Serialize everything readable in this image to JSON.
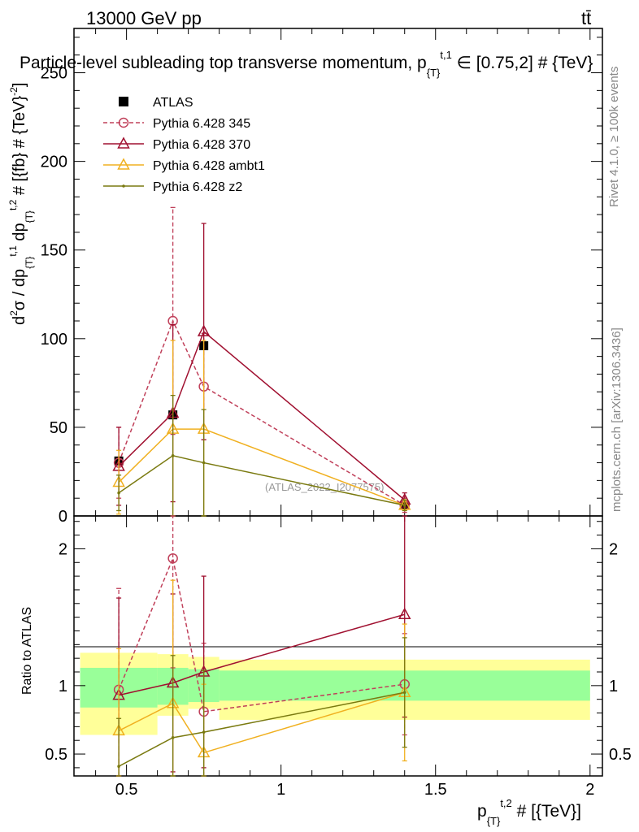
{
  "header": {
    "left": "13000 GeV pp",
    "right": "tt̄"
  },
  "side_labels": {
    "rivet": "Rivet 4.1.0, ≥ 100k events",
    "mcplots": "mcplots.cern.ch [arXiv:1306.3436]"
  },
  "chart_data": [
    {
      "type": "line",
      "title": "Particle-level subleading top transverse momentum, p_{T}^{t,1} ∈ [0.75,2] # {TeV}",
      "ylabel": "d²σ / dp_{T}^{t,1} dp_{T}^{t,2} # [{fb} # {TeV}⁻²]",
      "xlabel": "p_{T}^{t,2} # [{TeV}]",
      "watermark": "(ATLAS_2022_I2077575)",
      "xlim": [
        0.33,
        2.04
      ],
      "ylim": [
        0,
        275
      ],
      "yticks": [
        0,
        50,
        100,
        150,
        200,
        250
      ],
      "xticks": [
        0.5,
        1,
        1.5,
        2
      ],
      "xtick_labels": [
        "0.5",
        "1",
        "1.5",
        "2"
      ],
      "legend_position": "top-left",
      "series": [
        {
          "name": "ATLAS",
          "color": "#000000",
          "marker": "square",
          "x": [
            0.475,
            0.65,
            0.75,
            1.4
          ],
          "y": [
            31,
            57,
            96,
            6
          ]
        },
        {
          "name": "Pythia 6.428 345",
          "color": "#c0405a",
          "marker": "circle-open",
          "dashed": true,
          "x": [
            0.475,
            0.65,
            0.75,
            1.4
          ],
          "y": [
            30,
            110,
            73,
            6
          ],
          "err": [
            20,
            64,
            30,
            4
          ]
        },
        {
          "name": "Pythia 6.428 370",
          "color": "#a01030",
          "marker": "triangle-open",
          "x": [
            0.475,
            0.65,
            0.75,
            1.4
          ],
          "y": [
            28,
            58,
            104,
            9
          ],
          "err": [
            22,
            50,
            61,
            4
          ]
        },
        {
          "name": "Pythia 6.428 ambt1",
          "color": "#f0b020",
          "marker": "triangle-open",
          "x": [
            0.475,
            0.65,
            0.75,
            1.4
          ],
          "y": [
            19,
            49,
            49,
            6
          ],
          "err": [
            18,
            50,
            50,
            3
          ]
        },
        {
          "name": "Pythia 6.428 z2",
          "color": "#7a7a10",
          "marker": "dot",
          "x": [
            0.475,
            0.65,
            0.75,
            1.4
          ],
          "y": [
            13,
            34,
            30,
            6
          ],
          "err": [
            10,
            34,
            30,
            3
          ]
        }
      ]
    },
    {
      "type": "line",
      "ylabel": "Ratio to ATLAS",
      "xlim": [
        0.33,
        2.04
      ],
      "ylim": [
        0.34,
        2.24
      ],
      "yticks": [
        0.5,
        1,
        2
      ],
      "ytick_labels": [
        "0.5",
        "1",
        "2"
      ],
      "band_edges": [
        0.35,
        0.6,
        0.7,
        0.8,
        2.0
      ],
      "band_inner": [
        [
          0.84,
          1.13
        ],
        [
          0.86,
          1.13
        ],
        [
          0.88,
          1.12
        ],
        [
          0.89,
          1.11
        ]
      ],
      "band_outer": [
        [
          0.64,
          1.24
        ],
        [
          0.78,
          1.23
        ],
        [
          0.83,
          1.21
        ],
        [
          0.75,
          1.19
        ]
      ],
      "series": [
        {
          "name": "Pythia 6.428 345",
          "x": [
            0.475,
            0.65,
            0.75,
            1.4
          ],
          "y": [
            0.97,
            1.93,
            0.81,
            1.01
          ],
          "err": [
            0.74,
            0.8,
            0.5,
            0.37
          ]
        },
        {
          "name": "Pythia 6.428 370",
          "x": [
            0.475,
            0.65,
            0.75,
            1.4
          ],
          "y": [
            0.93,
            1.02,
            1.1,
            1.52
          ],
          "err": [
            0.71,
            0.65,
            0.7,
            0.75
          ]
        },
        {
          "name": "Pythia 6.428 ambt1",
          "x": [
            0.475,
            0.65,
            0.75,
            1.4
          ],
          "y": [
            0.67,
            0.87,
            0.51,
            0.95
          ],
          "err": [
            0.6,
            0.9,
            0.5,
            0.5
          ]
        },
        {
          "name": "Pythia 6.428 z2",
          "x": [
            0.475,
            0.65,
            0.75,
            1.4
          ],
          "y": [
            0.41,
            0.62,
            0.66,
            0.95
          ],
          "err": [
            0.35,
            0.6,
            0.45,
            0.4
          ]
        }
      ]
    }
  ]
}
